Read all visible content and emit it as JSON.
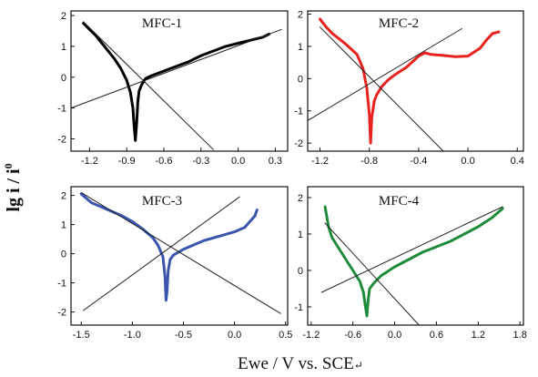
{
  "figure": {
    "ylabel": "lg i / i",
    "ylabel_sup": "0",
    "xlabel": "Ewe / V vs. SCE",
    "xlabel_suffix": "↵"
  },
  "chart_data": [
    {
      "type": "line",
      "title": "MFC-1",
      "xlim": [
        -1.35,
        0.4
      ],
      "ylim": [
        -2.4,
        2.15
      ],
      "xticks": [
        -1.2,
        -0.9,
        -0.6,
        -0.3,
        0.0,
        0.3
      ],
      "xtick_labels": [
        "-1.2",
        "-0.9",
        "-0.6",
        "-0.3",
        "0.0",
        "0.3"
      ],
      "yticks": [
        -2,
        -1,
        0,
        1,
        2
      ],
      "ytick_labels": [
        "-2",
        "-1",
        "0",
        "1",
        "2"
      ],
      "series": [
        {
          "color": "#000000",
          "width": 3,
          "x": [
            -1.25,
            -1.2,
            -1.15,
            -1.1,
            -1.05,
            -1.0,
            -0.95,
            -0.9,
            -0.87,
            -0.85,
            -0.84,
            -0.83,
            -0.82,
            -0.81,
            -0.8,
            -0.78,
            -0.75,
            -0.7,
            -0.6,
            -0.5,
            -0.4,
            -0.3,
            -0.2,
            -0.1,
            0.0,
            0.1,
            0.2,
            0.25
          ],
          "y": [
            1.75,
            1.55,
            1.35,
            1.1,
            0.85,
            0.6,
            0.3,
            -0.1,
            -0.5,
            -1.0,
            -1.6,
            -2.05,
            -1.5,
            -0.8,
            -0.45,
            -0.25,
            -0.05,
            0.05,
            0.2,
            0.35,
            0.5,
            0.7,
            0.85,
            1.0,
            1.1,
            1.2,
            1.3,
            1.4
          ]
        },
        {
          "color": "#222222",
          "width": 1,
          "x": [
            -1.35,
            0.35
          ],
          "y": [
            -1.0,
            1.55
          ]
        },
        {
          "color": "#222222",
          "width": 1,
          "x": [
            -1.25,
            -0.2
          ],
          "y": [
            1.8,
            -2.35
          ]
        }
      ]
    },
    {
      "type": "line",
      "title": "MFC-2",
      "xlim": [
        -1.3,
        0.45
      ],
      "ylim": [
        -2.25,
        2.1
      ],
      "xticks": [
        -1.2,
        -0.8,
        -0.4,
        0.0,
        0.4
      ],
      "xtick_labels": [
        "-1.2",
        "-0.8",
        "-0.4",
        "0.0",
        "0.4"
      ],
      "yticks": [
        -2,
        -1,
        0,
        1,
        2
      ],
      "ytick_labels": [
        "-2",
        "-1",
        "0",
        "1",
        "2"
      ],
      "series": [
        {
          "color": "#e8221e",
          "width": 3,
          "x": [
            -1.2,
            -1.15,
            -1.1,
            -1.0,
            -0.9,
            -0.85,
            -0.82,
            -0.8,
            -0.79,
            -0.78,
            -0.76,
            -0.74,
            -0.7,
            -0.65,
            -0.6,
            -0.5,
            -0.4,
            -0.35,
            -0.3,
            -0.2,
            -0.1,
            0.0,
            0.1,
            0.15,
            0.2,
            0.25
          ],
          "y": [
            1.85,
            1.6,
            1.4,
            1.1,
            0.75,
            0.3,
            -0.3,
            -1.1,
            -2.0,
            -1.2,
            -0.7,
            -0.5,
            -0.25,
            -0.05,
            0.1,
            0.35,
            0.7,
            0.8,
            0.75,
            0.72,
            0.68,
            0.7,
            0.95,
            1.2,
            1.4,
            1.45
          ]
        },
        {
          "color": "#222222",
          "width": 1,
          "x": [
            -1.3,
            -0.05
          ],
          "y": [
            -1.3,
            1.55
          ]
        },
        {
          "color": "#222222",
          "width": 1,
          "x": [
            -1.2,
            -0.2
          ],
          "y": [
            1.6,
            -2.25
          ]
        }
      ]
    },
    {
      "type": "line",
      "title": "MFC-3",
      "xlim": [
        -1.6,
        0.52
      ],
      "ylim": [
        -2.45,
        2.3
      ],
      "xticks": [
        -1.5,
        -1.0,
        -0.5,
        0.0,
        0.5
      ],
      "xtick_labels": [
        "-1.5",
        "-1.0",
        "-0.5",
        "0.0",
        "0.5"
      ],
      "yticks": [
        -2,
        -1,
        0,
        1,
        2
      ],
      "ytick_labels": [
        "-2",
        "-1",
        "0",
        "1",
        "2"
      ],
      "series": [
        {
          "color": "#3a55ae",
          "width": 3,
          "x": [
            -1.5,
            -1.4,
            -1.3,
            -1.2,
            -1.1,
            -1.0,
            -0.9,
            -0.8,
            -0.75,
            -0.7,
            -0.68,
            -0.67,
            -0.66,
            -0.65,
            -0.63,
            -0.6,
            -0.55,
            -0.5,
            -0.4,
            -0.3,
            -0.2,
            -0.1,
            0.0,
            0.1,
            0.2,
            0.22
          ],
          "y": [
            2.05,
            1.75,
            1.6,
            1.45,
            1.3,
            1.1,
            0.85,
            0.55,
            0.3,
            -0.1,
            -0.8,
            -1.6,
            -1.3,
            -0.6,
            -0.2,
            -0.05,
            0.05,
            0.15,
            0.3,
            0.45,
            0.55,
            0.65,
            0.75,
            0.9,
            1.3,
            1.5
          ]
        },
        {
          "color": "#222222",
          "width": 1,
          "x": [
            -1.48,
            0.05
          ],
          "y": [
            -1.95,
            1.95
          ]
        },
        {
          "color": "#222222",
          "width": 1,
          "x": [
            -1.5,
            0.45
          ],
          "y": [
            2.1,
            -2.05
          ]
        }
      ]
    },
    {
      "type": "line",
      "title": "MFC-4",
      "xlim": [
        -1.25,
        1.85
      ],
      "ylim": [
        -1.5,
        2.3
      ],
      "xticks": [
        -1.2,
        -0.6,
        0.0,
        0.6,
        1.2,
        1.8
      ],
      "xtick_labels": [
        "-1.2",
        "-0.6",
        "0.0",
        "0.6",
        "1.2",
        "1.8"
      ],
      "yticks": [
        -1,
        0,
        1,
        2
      ],
      "ytick_labels": [
        "-1",
        "0",
        "1",
        "2"
      ],
      "series": [
        {
          "color": "#1f8a3a",
          "width": 3,
          "x": [
            -1.0,
            -0.95,
            -0.9,
            -0.8,
            -0.7,
            -0.6,
            -0.5,
            -0.45,
            -0.42,
            -0.4,
            -0.38,
            -0.36,
            -0.3,
            -0.2,
            0.0,
            0.2,
            0.4,
            0.6,
            0.8,
            1.0,
            1.2,
            1.4,
            1.55
          ],
          "y": [
            1.75,
            1.2,
            0.9,
            0.6,
            0.3,
            0.0,
            -0.3,
            -0.6,
            -1.0,
            -1.25,
            -0.8,
            -0.5,
            -0.35,
            -0.15,
            0.1,
            0.3,
            0.5,
            0.65,
            0.8,
            1.0,
            1.2,
            1.45,
            1.7
          ]
        },
        {
          "color": "#222222",
          "width": 1,
          "x": [
            -1.05,
            1.55
          ],
          "y": [
            -0.6,
            1.75
          ]
        },
        {
          "color": "#222222",
          "width": 1,
          "x": [
            -1.0,
            0.35
          ],
          "y": [
            1.3,
            -1.5
          ]
        }
      ]
    }
  ]
}
